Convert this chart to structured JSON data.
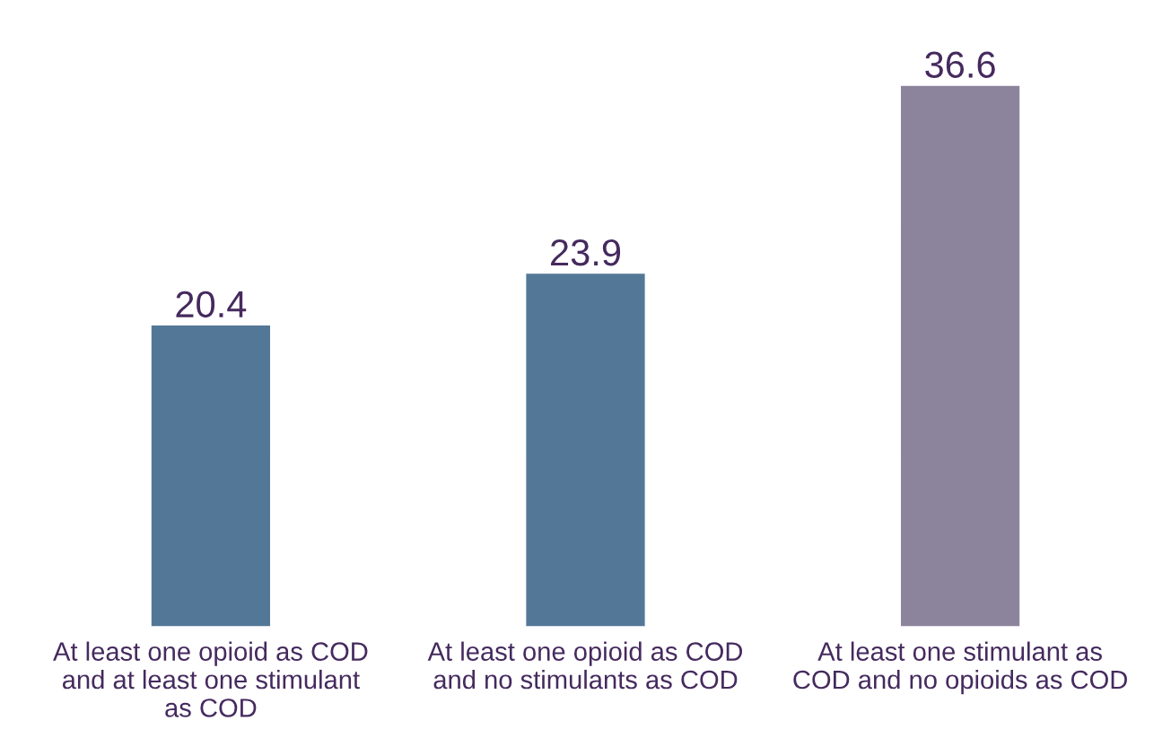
{
  "chart_data": {
    "type": "bar",
    "categories": [
      "At least one opioid as COD\nand at least one stimulant\nas COD",
      "At least one opioid as COD\nand no stimulants as COD",
      "At least one stimulant as\nCOD and no opioids as COD"
    ],
    "values": [
      20.4,
      23.9,
      36.6
    ],
    "colors": [
      "#4779a3",
      "#4779a3",
      "#8b80a0"
    ],
    "data_labels": true,
    "grid": false,
    "legend": false
  }
}
